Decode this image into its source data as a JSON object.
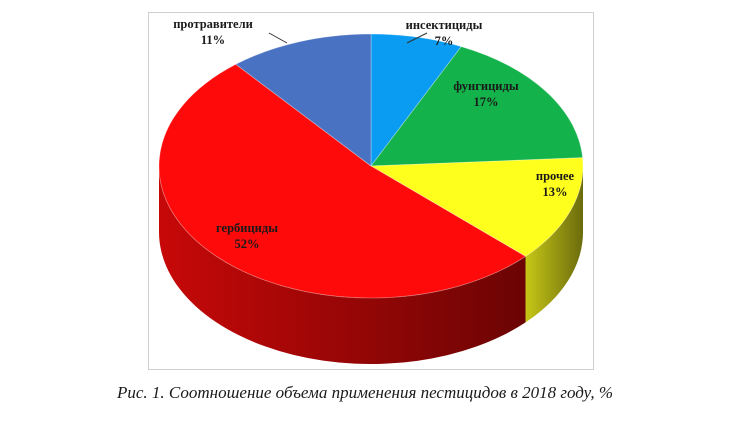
{
  "caption": "Рис. 1. Соотношение объема применения пестицидов в 2018 году, %",
  "chart_data": {
    "type": "pie",
    "style": "3d",
    "unit": "%",
    "slices": [
      {
        "label": "инсектициды",
        "value": 7,
        "value_label": "7%",
        "color": "#0a9cf2"
      },
      {
        "label": "фунгициды",
        "value": 17,
        "value_label": "17%",
        "color": "#14b24a"
      },
      {
        "label": "прочее",
        "value": 13,
        "value_label": "13%",
        "color": "#ffff1e"
      },
      {
        "label": "гербициды",
        "value": 52,
        "value_label": "52%",
        "color": "#ff0a0a"
      },
      {
        "label": "протравители",
        "value": 11,
        "value_label": "11%",
        "color": "#4a72c2"
      }
    ]
  }
}
